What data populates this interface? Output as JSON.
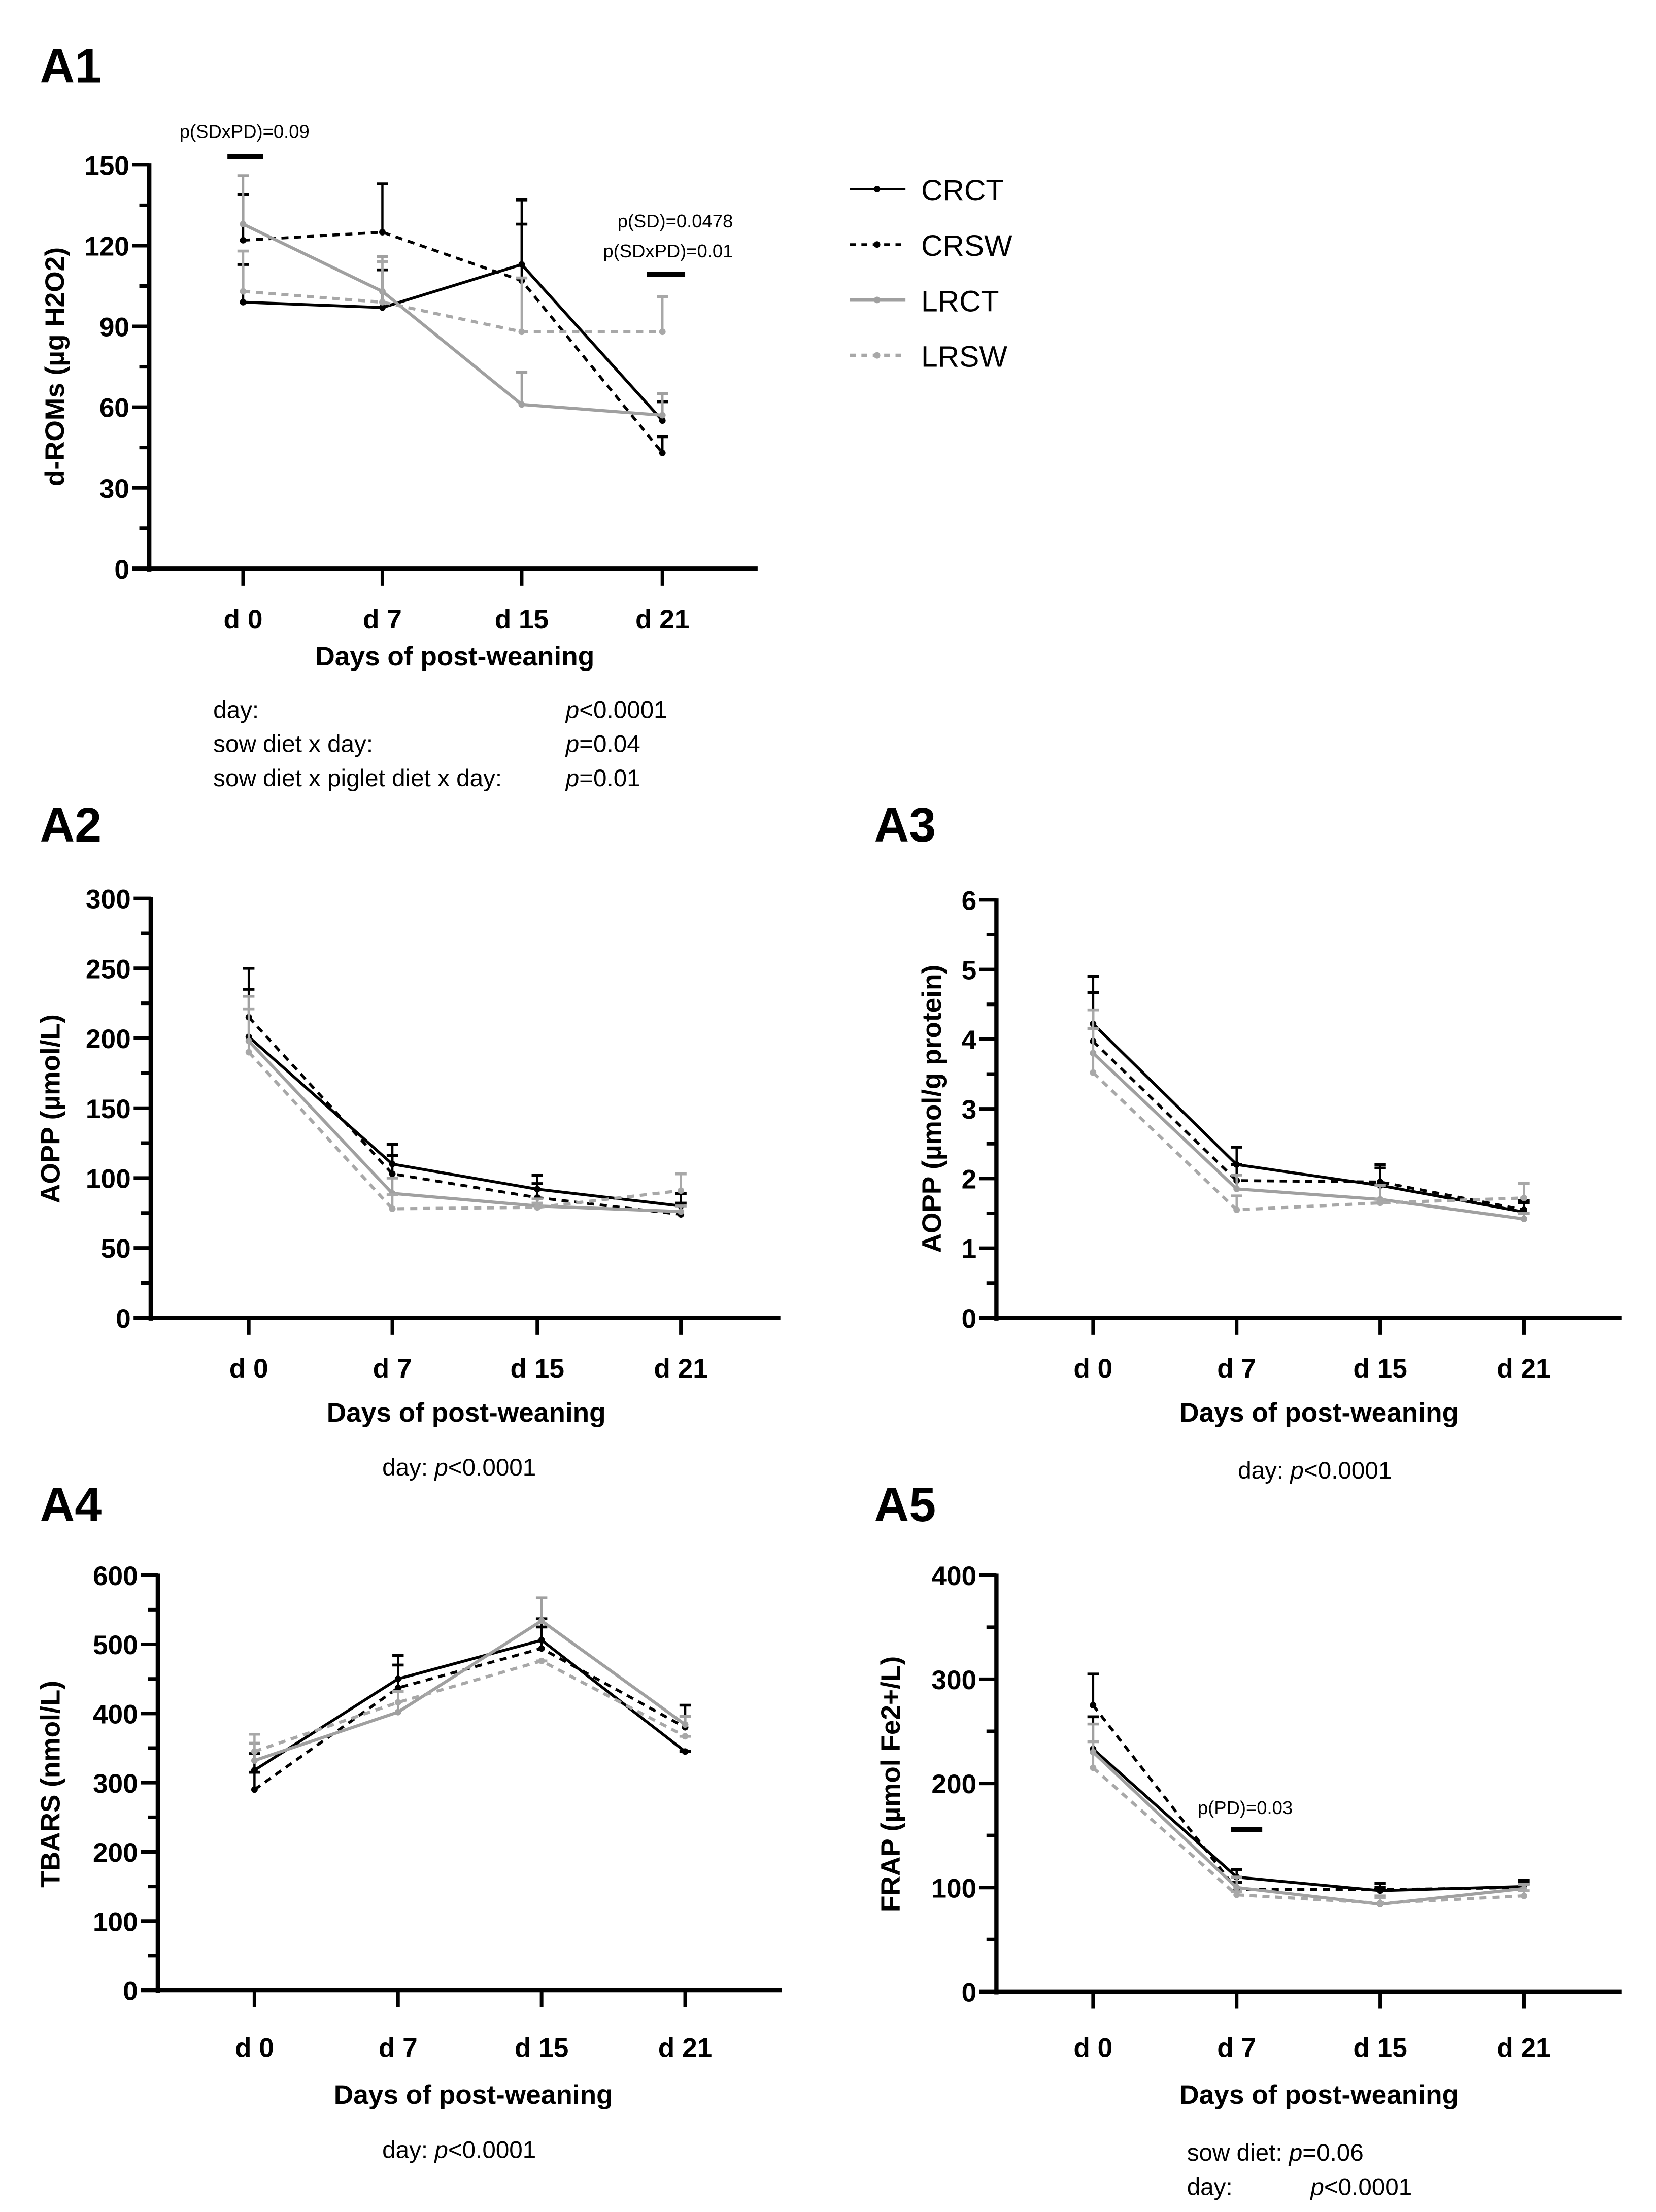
{
  "legend": [
    {
      "name": "CRCT",
      "color": "#000000",
      "dashed": false
    },
    {
      "name": "CRSW",
      "color": "#000000",
      "dashed": true
    },
    {
      "name": "LRCT",
      "color": "#a0a0a0",
      "dashed": false
    },
    {
      "name": "LRSW",
      "color": "#a8a8a8",
      "dashed": true
    }
  ],
  "chart_data": [
    {
      "panel": "A1",
      "type": "line",
      "xlabel": "Days of post-weaning",
      "ylabel": "d-ROMs (µg H2O2)",
      "categories": [
        "d 0",
        "d 7",
        "d 15",
        "d 21"
      ],
      "ylim": [
        0,
        150
      ],
      "yticks": [
        0,
        30,
        60,
        90,
        120,
        150
      ],
      "minor_step": 15,
      "series": [
        {
          "name": "CRCT",
          "values": [
            99,
            97,
            113,
            55
          ],
          "error_upper": [
            113,
            111,
            137,
            62
          ]
        },
        {
          "name": "CRSW",
          "values": [
            122,
            125,
            107,
            43
          ],
          "error_upper": [
            139,
            143,
            128,
            49
          ]
        },
        {
          "name": "LRCT",
          "values": [
            128,
            103,
            61,
            57
          ],
          "error_upper": [
            146,
            116,
            73,
            65
          ]
        },
        {
          "name": "LRSW",
          "values": [
            103,
            99,
            88,
            88
          ],
          "error_upper": [
            118,
            114,
            108,
            101
          ]
        }
      ],
      "annotations": [
        [
          "p(SDxPD)=0.09"
        ],
        [
          "p(SD)=0.0478",
          "p(SDxPD)=0.01"
        ]
      ],
      "stats": [
        {
          "label": "day:",
          "p": "p",
          "value": "<0.0001"
        },
        {
          "label": "sow diet x day:",
          "p": "p",
          "value": "=0.04"
        },
        {
          "label": "sow diet x piglet diet x day:",
          "p": "p",
          "value": "=0.01"
        }
      ]
    },
    {
      "panel": "A2",
      "type": "line",
      "xlabel": "Days of post-weaning",
      "ylabel": "AOPP (µmol/L)",
      "categories": [
        "d 0",
        "d 7",
        "d 15",
        "d 21"
      ],
      "ylim": [
        0,
        300
      ],
      "yticks": [
        0,
        50,
        100,
        150,
        200,
        250,
        300
      ],
      "minor_step": 25,
      "series": [
        {
          "name": "CRCT",
          "values": [
            201,
            110,
            92,
            80
          ],
          "error_upper": [
            250,
            124,
            102,
            89
          ]
        },
        {
          "name": "CRSW",
          "values": [
            215,
            103,
            86,
            74
          ],
          "error_upper": [
            235,
            116,
            96,
            82
          ]
        },
        {
          "name": "LRCT",
          "values": [
            198,
            89,
            80,
            76
          ],
          "error_upper": [
            230,
            100,
            85,
            80
          ]
        },
        {
          "name": "LRSW",
          "values": [
            190,
            78,
            79,
            91
          ],
          "error_upper": [
            221,
            88,
            82,
            103
          ]
        }
      ],
      "annotations": [],
      "stats": [
        {
          "label": "day:",
          "p": "p",
          "value": "<0.0001"
        }
      ]
    },
    {
      "panel": "A3",
      "type": "line",
      "xlabel": "Days of post-weaning",
      "ylabel": "AOPP (µmol/g protein)",
      "categories": [
        "d 0",
        "d 7",
        "d 15",
        "d 21"
      ],
      "ylim": [
        0,
        6
      ],
      "yticks": [
        0,
        1,
        2,
        3,
        4,
        5,
        6
      ],
      "minor_step": 0.5,
      "series": [
        {
          "name": "CRCT",
          "values": [
            4.22,
            2.2,
            1.9,
            1.52
          ],
          "error_upper": [
            4.9,
            2.45,
            2.2,
            1.68
          ]
        },
        {
          "name": "CRSW",
          "values": [
            3.97,
            1.97,
            1.95,
            1.55
          ],
          "error_upper": [
            4.67,
            2.2,
            2.15,
            1.65
          ]
        },
        {
          "name": "LRCT",
          "values": [
            3.8,
            1.85,
            1.7,
            1.42
          ],
          "error_upper": [
            4.15,
            2.05,
            1.9,
            1.5
          ]
        },
        {
          "name": "LRSW",
          "values": [
            3.52,
            1.55,
            1.65,
            1.72
          ],
          "error_upper": [
            4.42,
            1.75,
            1.7,
            1.93
          ]
        }
      ],
      "annotations": [],
      "stats": [
        {
          "label": "day:",
          "p": "p",
          "value": "<0.0001"
        }
      ]
    },
    {
      "panel": "A4",
      "type": "line",
      "xlabel": "Days of post-weaning",
      "ylabel": "TBARS (nmol/L)",
      "categories": [
        "d 0",
        "d 7",
        "d 15",
        "d 21"
      ],
      "ylim": [
        0,
        600
      ],
      "yticks": [
        0,
        100,
        200,
        300,
        400,
        500,
        600
      ],
      "minor_step": 50,
      "series": [
        {
          "name": "CRCT",
          "values": [
            318,
            450,
            506,
            345
          ],
          "error_upper": [
            342,
            484,
            537,
            345
          ]
        },
        {
          "name": "CRSW",
          "values": [
            290,
            437,
            494,
            380
          ],
          "error_upper": [
            315,
            470,
            525,
            412
          ]
        },
        {
          "name": "LRCT",
          "values": [
            332,
            402,
            534,
            384
          ],
          "error_upper": [
            357,
            432,
            567,
            396
          ]
        },
        {
          "name": "LRSW",
          "values": [
            345,
            416,
            476,
            367
          ],
          "error_upper": [
            370,
            432,
            476,
            367
          ]
        }
      ],
      "annotations": [],
      "stats": [
        {
          "label": "day:",
          "p": "p",
          "value": "<0.0001"
        }
      ]
    },
    {
      "panel": "A5",
      "type": "line",
      "xlabel": "Days of post-weaning",
      "ylabel": "FRAP (µmol Fe2+/L)",
      "categories": [
        "d 0",
        "d 7",
        "d 15",
        "d 21"
      ],
      "ylim": [
        0,
        400
      ],
      "yticks": [
        0,
        100,
        200,
        300,
        400
      ],
      "minor_step": 50,
      "series": [
        {
          "name": "CRCT",
          "values": [
            233,
            110,
            97,
            101
          ],
          "error_upper": [
            264,
            117,
            104,
            107
          ]
        },
        {
          "name": "CRSW",
          "values": [
            275,
            98,
            98,
            100
          ],
          "error_upper": [
            305,
            105,
            100,
            104
          ]
        },
        {
          "name": "LRCT",
          "values": [
            230,
            100,
            84,
            99
          ],
          "error_upper": [
            257,
            110,
            92,
            103
          ]
        },
        {
          "name": "LRSW",
          "values": [
            215,
            93,
            85,
            92
          ],
          "error_upper": [
            240,
            96,
            90,
            97
          ]
        }
      ],
      "annotations": [
        [
          "p(PD)=0.03"
        ]
      ],
      "stats": [
        {
          "label": "sow diet:",
          "p": "p",
          "value": "=0.06"
        },
        {
          "label": "day:",
          "p": "p",
          "value": "<0.0001"
        }
      ]
    }
  ]
}
